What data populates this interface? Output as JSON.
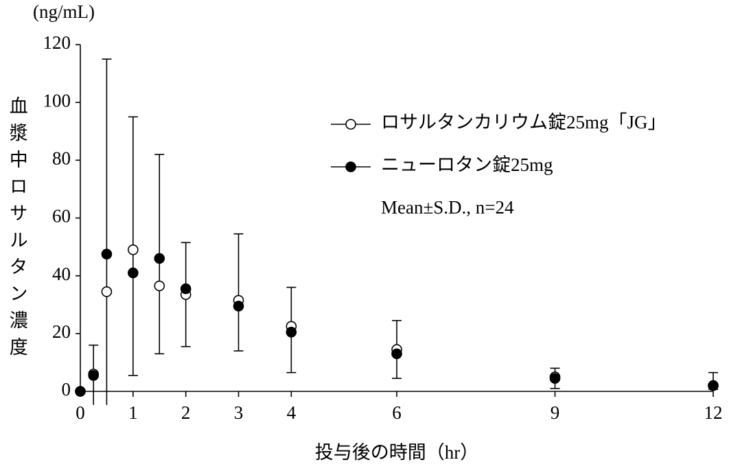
{
  "chart_data": {
    "type": "line",
    "unit_label": "(ng/mL)",
    "ylabel": "血漿中ロサルタン濃度",
    "xlabel": "投与後の時間（hr）",
    "annotation": "Mean±S.D., n=24",
    "x": [
      0,
      0.25,
      0.5,
      1,
      1.5,
      2,
      3,
      4,
      6,
      9,
      12
    ],
    "series": [
      {
        "name": "ロサルタンカリウム錠25mg「JG」",
        "color": "#000000",
        "marker": "open",
        "values": [
          0,
          6,
          34.5,
          49,
          36.5,
          33.5,
          31.5,
          22.5,
          14.5,
          5,
          2
        ]
      },
      {
        "name": "ニューロタン錠25mg",
        "color": "#000000",
        "marker": "filled",
        "values": [
          0,
          5.5,
          47.5,
          41,
          46,
          35.5,
          29.5,
          20.5,
          13,
          4.5,
          2
        ]
      }
    ],
    "error_bars": {
      "x": [
        0.25,
        0.5,
        1,
        1.5,
        2,
        3,
        4,
        6,
        9,
        12
      ],
      "lower": [
        -4.7,
        -4.7,
        5.5,
        13,
        15.5,
        14,
        6.5,
        4.5,
        1,
        0.7
      ],
      "upper": [
        16,
        115,
        95,
        82,
        51.5,
        54.5,
        36,
        24.5,
        8,
        6.5
      ]
    },
    "xlim": [
      0,
      12
    ],
    "xticks": [
      0,
      1,
      2,
      3,
      4,
      6,
      9,
      12
    ],
    "ylim": [
      0,
      120
    ],
    "yticks": [
      0,
      20,
      40,
      60,
      80,
      100,
      120
    ],
    "grid": false
  }
}
